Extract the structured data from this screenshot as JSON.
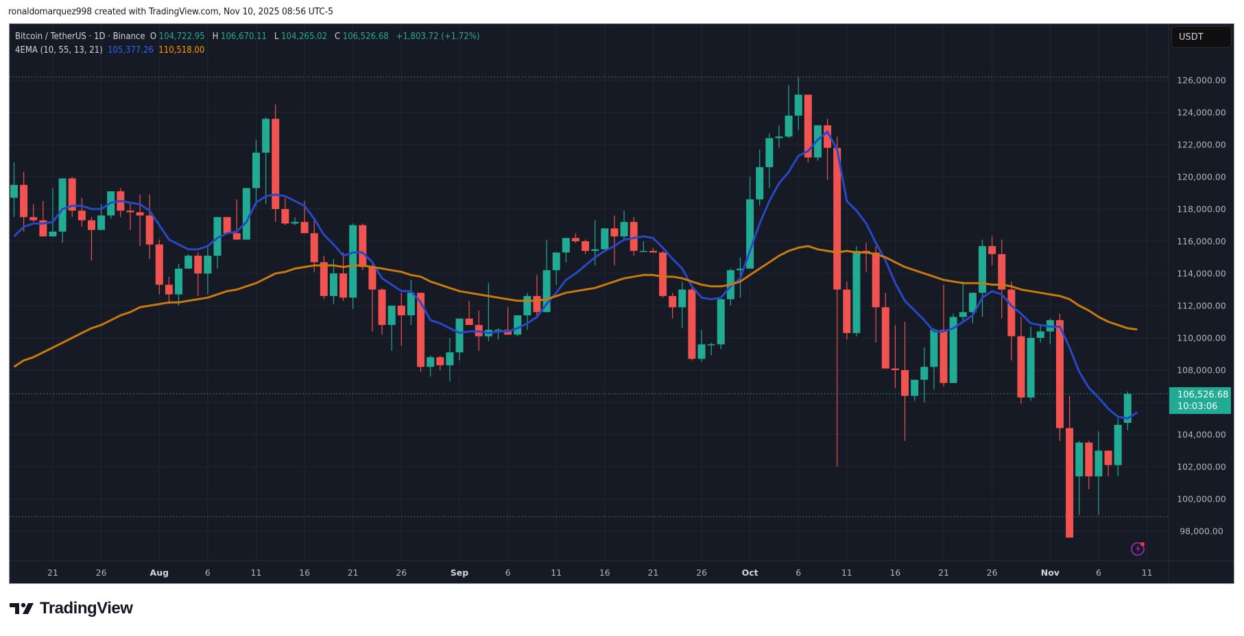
{
  "credit": "ronaldomarquez998 created with TradingView.com, Nov 10, 2025 08:56 UTC-5",
  "legend": {
    "symbol": "Bitcoin / TetherUS · 1D · Binance",
    "o_label": "O",
    "o_value": "104,722.95",
    "h_label": "H",
    "h_value": "106,670.11",
    "l_label": "L",
    "l_value": "104,265.02",
    "c_label": "C",
    "c_value": "106,526.68",
    "change": "+1,803.72 (+1.72%)",
    "indicator": "4EMA (10, 55, 13, 21)",
    "ema_fast_value": "105,377.26",
    "ema_slow_value": "110,518.00"
  },
  "currency_button": "USDT",
  "last_price": {
    "price": "106,526.68",
    "countdown": "10:03:06"
  },
  "logo_text": "TradingView",
  "colors": {
    "background": "#161a25",
    "grid": "#232734",
    "up": "#22ab94",
    "down": "#f05350",
    "ema_fast": "#2948c7",
    "ema_slow": "#c87a0e",
    "axis_text": "#b2b5be",
    "price_tag": "#22ab94",
    "alert_icon": "#9c27b0"
  },
  "chart_data": {
    "type": "candlestick",
    "title": "Bitcoin / TetherUS · 1D · Binance",
    "xlabel": "",
    "ylabel": "USDT",
    "ylim": [
      97000,
      127500
    ],
    "grid": true,
    "legend_position": "top-left",
    "y_ticks": [
      "126,000.00",
      "124,000.00",
      "122,000.00",
      "120,000.00",
      "118,000.00",
      "116,000.00",
      "114,000.00",
      "112,000.00",
      "110,000.00",
      "108,000.00",
      "106,000.00",
      "104,000.00",
      "102,000.00",
      "100,000.00",
      "98,000.00"
    ],
    "x_ticks": [
      {
        "label": "21",
        "idx": 4,
        "bold": false
      },
      {
        "label": "26",
        "idx": 9,
        "bold": false
      },
      {
        "label": "Aug",
        "idx": 15,
        "bold": true
      },
      {
        "label": "6",
        "idx": 20,
        "bold": false
      },
      {
        "label": "11",
        "idx": 25,
        "bold": false
      },
      {
        "label": "16",
        "idx": 30,
        "bold": false
      },
      {
        "label": "21",
        "idx": 35,
        "bold": false
      },
      {
        "label": "26",
        "idx": 40,
        "bold": false
      },
      {
        "label": "Sep",
        "idx": 46,
        "bold": true
      },
      {
        "label": "6",
        "idx": 51,
        "bold": false
      },
      {
        "label": "11",
        "idx": 56,
        "bold": false
      },
      {
        "label": "16",
        "idx": 61,
        "bold": false
      },
      {
        "label": "21",
        "idx": 66,
        "bold": false
      },
      {
        "label": "26",
        "idx": 71,
        "bold": false
      },
      {
        "label": "Oct",
        "idx": 76,
        "bold": true
      },
      {
        "label": "6",
        "idx": 81,
        "bold": false
      },
      {
        "label": "11",
        "idx": 86,
        "bold": false
      },
      {
        "label": "16",
        "idx": 91,
        "bold": false
      },
      {
        "label": "21",
        "idx": 96,
        "bold": false
      },
      {
        "label": "26",
        "idx": 101,
        "bold": false
      },
      {
        "label": "Nov",
        "idx": 107,
        "bold": true
      },
      {
        "label": "6",
        "idx": 112,
        "bold": false
      },
      {
        "label": "11",
        "idx": 117,
        "bold": false
      }
    ],
    "start_date": "2025-07-17",
    "end_date": "2025-11-10",
    "high_marker": 126200,
    "low_marker": 98900,
    "last_price": 106526.68,
    "candles_ohlc": [
      [
        118700,
        120900,
        117500,
        119500
      ],
      [
        119500,
        120300,
        116600,
        117500
      ],
      [
        117500,
        118300,
        117200,
        117300
      ],
      [
        117300,
        118500,
        116500,
        116300
      ],
      [
        116300,
        119300,
        116600,
        116600
      ],
      [
        116600,
        119800,
        115900,
        119900
      ],
      [
        119900,
        120000,
        117500,
        117900
      ],
      [
        117900,
        118700,
        116900,
        117300
      ],
      [
        117300,
        117500,
        114800,
        116700
      ],
      [
        116700,
        118300,
        116900,
        117600
      ],
      [
        117600,
        119100,
        117400,
        119100
      ],
      [
        119100,
        119300,
        117500,
        117900
      ],
      [
        117900,
        118400,
        116700,
        117800
      ],
      [
        117800,
        118900,
        115700,
        117600
      ],
      [
        117600,
        118900,
        114900,
        115800
      ],
      [
        115800,
        116100,
        112700,
        113300
      ],
      [
        113300,
        113800,
        112100,
        112700
      ],
      [
        112700,
        114600,
        112000,
        114300
      ],
      [
        114300,
        115200,
        114500,
        115100
      ],
      [
        115100,
        115300,
        112600,
        114000
      ],
      [
        114000,
        115800,
        112700,
        115100
      ],
      [
        115100,
        117200,
        114300,
        117500
      ],
      [
        117500,
        117500,
        116500,
        116500
      ],
      [
        116500,
        118600,
        116200,
        116100
      ],
      [
        116100,
        119300,
        116200,
        119300
      ],
      [
        119300,
        122300,
        118200,
        121500
      ],
      [
        121500,
        123700,
        118300,
        123600
      ],
      [
        123600,
        124500,
        117200,
        118000
      ],
      [
        118000,
        118700,
        117000,
        117100
      ],
      [
        117100,
        117500,
        117000,
        117200
      ],
      [
        117200,
        118500,
        116600,
        116500
      ],
      [
        116500,
        117300,
        114100,
        114700
      ],
      [
        114700,
        115100,
        112400,
        112600
      ],
      [
        112600,
        114900,
        112100,
        114000
      ],
      [
        114000,
        115300,
        112300,
        112500
      ],
      [
        112500,
        117100,
        111800,
        117000
      ],
      [
        117000,
        117100,
        114200,
        114400
      ],
      [
        114400,
        114600,
        110400,
        113000
      ],
      [
        113000,
        113100,
        110200,
        110800
      ],
      [
        110800,
        111800,
        109200,
        112000
      ],
      [
        112000,
        112800,
        109500,
        111400
      ],
      [
        111400,
        113600,
        110800,
        112800
      ],
      [
        112800,
        112800,
        107900,
        108200
      ],
      [
        108200,
        108900,
        107600,
        108800
      ],
      [
        108800,
        108900,
        108000,
        108300
      ],
      [
        108300,
        110000,
        107300,
        109100
      ],
      [
        109100,
        111000,
        108600,
        111200
      ],
      [
        111200,
        112300,
        111100,
        110800
      ],
      [
        110800,
        111700,
        109200,
        110100
      ],
      [
        110100,
        113400,
        109800,
        110500
      ],
      [
        110500,
        110600,
        109900,
        110500
      ],
      [
        110500,
        111900,
        110200,
        110200
      ],
      [
        110200,
        111400,
        110100,
        111400
      ],
      [
        111400,
        112800,
        110500,
        112600
      ],
      [
        112600,
        113900,
        111200,
        111600
      ],
      [
        111600,
        116100,
        111700,
        114200
      ],
      [
        114200,
        115200,
        113300,
        115300
      ],
      [
        115300,
        116200,
        114700,
        116200
      ],
      [
        116200,
        116500,
        115900,
        116000
      ],
      [
        116000,
        116100,
        115200,
        115400
      ],
      [
        115400,
        117300,
        114500,
        115500
      ],
      [
        115500,
        116600,
        115500,
        116800
      ],
      [
        116800,
        117600,
        114500,
        116300
      ],
      [
        116300,
        117900,
        116100,
        117200
      ],
      [
        117200,
        117500,
        115100,
        115400
      ],
      [
        115400,
        116000,
        115400,
        115400
      ],
      [
        115400,
        115600,
        115300,
        115300
      ],
      [
        115300,
        115400,
        112500,
        112600
      ],
      [
        112600,
        112800,
        111200,
        111900
      ],
      [
        111900,
        113500,
        110600,
        113000
      ],
      [
        113000,
        113300,
        108600,
        108700
      ],
      [
        108700,
        110500,
        108500,
        109600
      ],
      [
        109600,
        109700,
        108900,
        109600
      ],
      [
        109600,
        112400,
        109300,
        112400
      ],
      [
        112400,
        114300,
        112000,
        114200
      ],
      [
        114200,
        115000,
        112500,
        114300
      ],
      [
        114300,
        120000,
        114500,
        118600
      ],
      [
        118600,
        121700,
        118200,
        120600
      ],
      [
        120600,
        122700,
        119300,
        122400
      ],
      [
        122400,
        123200,
        121800,
        122500
      ],
      [
        122500,
        125700,
        122400,
        123800
      ],
      [
        123800,
        126200,
        122900,
        125100
      ],
      [
        125100,
        125000,
        120900,
        121200
      ],
      [
        121200,
        123200,
        121000,
        123200
      ],
      [
        123200,
        123600,
        119800,
        121800
      ],
      [
        121800,
        122500,
        102000,
        113000
      ],
      [
        113000,
        113500,
        109900,
        110300
      ],
      [
        110300,
        115700,
        110100,
        115400
      ],
      [
        115400,
        115900,
        114100,
        115300
      ],
      [
        115300,
        115700,
        109700,
        111900
      ],
      [
        111900,
        112800,
        108600,
        108100
      ],
      [
        108100,
        110800,
        106900,
        108000
      ],
      [
        108000,
        111000,
        103600,
        106400
      ],
      [
        106400,
        107000,
        106100,
        107400
      ],
      [
        107400,
        109400,
        106000,
        108200
      ],
      [
        108200,
        110600,
        106800,
        110500
      ],
      [
        110500,
        113300,
        107000,
        107200
      ],
      [
        107200,
        111500,
        108000,
        111300
      ],
      [
        111300,
        113500,
        111000,
        111600
      ],
      [
        111600,
        112300,
        110900,
        112800
      ],
      [
        112800,
        116100,
        111300,
        115700
      ],
      [
        115700,
        116300,
        114500,
        115200
      ],
      [
        115200,
        116100,
        111200,
        113000
      ],
      [
        113000,
        113500,
        108600,
        110100
      ],
      [
        110100,
        111300,
        105900,
        106300
      ],
      [
        106300,
        110700,
        106100,
        110000
      ],
      [
        110000,
        110800,
        109700,
        110400
      ],
      [
        110400,
        111200,
        109600,
        111100
      ],
      [
        111100,
        111500,
        103600,
        104400
      ],
      [
        104400,
        106400,
        99000,
        97600
      ],
      [
        101400,
        103600,
        99000,
        103500
      ],
      [
        103500,
        103600,
        100600,
        101400
      ],
      [
        101400,
        104200,
        99000,
        103000
      ],
      [
        103000,
        103000,
        101400,
        102100
      ],
      [
        102100,
        105000,
        101400,
        104600
      ],
      [
        104722.95,
        106670.11,
        104265.02,
        106526.68
      ]
    ],
    "series": [
      {
        "name": "EMA 10",
        "color": "#2948c7",
        "last_value": 105377.26,
        "values": [
          116300,
          116900,
          117100,
          117100,
          117200,
          118000,
          118200,
          118200,
          118000,
          118000,
          118400,
          118500,
          118400,
          118300,
          117900,
          117000,
          116100,
          115800,
          115500,
          115500,
          115700,
          116200,
          116500,
          116600,
          117200,
          118400,
          118800,
          118900,
          118800,
          118500,
          118200,
          117400,
          116400,
          115800,
          115100,
          115300,
          115300,
          114700,
          113700,
          113300,
          112900,
          112900,
          112200,
          111100,
          110900,
          110600,
          110300,
          110400,
          110400,
          110300,
          110400,
          110400,
          110600,
          110900,
          111300,
          112100,
          112800,
          113600,
          114000,
          114500,
          115000,
          115400,
          115700,
          116100,
          116200,
          116300,
          116200,
          115600,
          114900,
          114300,
          113200,
          112500,
          112400,
          112500,
          113200,
          113700,
          115400,
          117100,
          118500,
          119600,
          120300,
          121300,
          121600,
          122300,
          122800,
          121700,
          118500,
          117900,
          117100,
          115900,
          114800,
          113400,
          112300,
          111700,
          111100,
          110400,
          110400,
          110600,
          111000,
          111400,
          112500,
          112900,
          112700,
          112000,
          111500,
          110900,
          110800,
          110700,
          110700,
          109400,
          107900,
          106900,
          106300,
          105600,
          105100,
          105000,
          105377
        ]
      },
      {
        "name": "EMA 55",
        "color": "#c87a0e",
        "last_value": 110518.0,
        "values": [
          108200,
          108600,
          108800,
          109100,
          109400,
          109700,
          110000,
          110300,
          110600,
          110800,
          111100,
          111400,
          111600,
          111900,
          112000,
          112100,
          112200,
          112200,
          112300,
          112400,
          112500,
          112700,
          112900,
          113000,
          113200,
          113400,
          113700,
          114000,
          114100,
          114300,
          114400,
          114500,
          114500,
          114500,
          114400,
          114500,
          114500,
          114400,
          114300,
          114200,
          114100,
          113900,
          113800,
          113500,
          113300,
          113100,
          112900,
          112800,
          112700,
          112600,
          112500,
          112400,
          112300,
          112300,
          112300,
          112400,
          112600,
          112800,
          112900,
          113000,
          113100,
          113300,
          113500,
          113700,
          113800,
          113900,
          113900,
          113800,
          113800,
          113700,
          113500,
          113300,
          113200,
          113200,
          113300,
          113500,
          113900,
          114300,
          114700,
          115100,
          115400,
          115600,
          115700,
          115500,
          115400,
          115300,
          115400,
          115300,
          115300,
          115200,
          115000,
          114700,
          114400,
          114200,
          114000,
          113800,
          113600,
          113500,
          113400,
          113400,
          113400,
          113300,
          113300,
          113200,
          113000,
          112900,
          112800,
          112700,
          112600,
          112400,
          112000,
          111700,
          111300,
          111000,
          110800,
          110600,
          110518
        ]
      }
    ]
  }
}
